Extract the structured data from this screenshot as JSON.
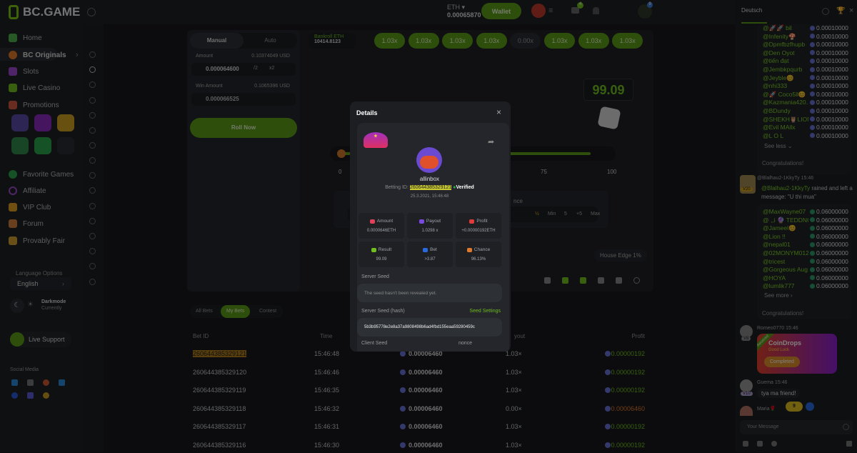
{
  "header": {
    "logo": "BC.GAME",
    "currency": "ETH",
    "balance": "0.00065870",
    "wallet_label": "Wallet",
    "mail_badge": "4",
    "chat_badge": "9"
  },
  "sidebar": {
    "items": [
      {
        "label": "Home",
        "color": "#4bb24b"
      },
      {
        "label": "BC Originals",
        "color": "#e07a2a"
      },
      {
        "label": "Slots",
        "color": "#a04ad0"
      },
      {
        "label": "Live Casino",
        "color": "#6fbf1e"
      },
      {
        "label": "Promotions",
        "color": "#d05a40"
      }
    ],
    "items2": [
      {
        "label": "Favorite Games",
        "color": "#2aa34a"
      },
      {
        "label": "Affiliate",
        "color": "#a04ad0"
      },
      {
        "label": "VIP Club",
        "color": "#e0a020"
      },
      {
        "label": "Forum",
        "color": "#d08040"
      },
      {
        "label": "Provably Fair",
        "color": "#d0a030"
      }
    ],
    "language_label": "Language Options",
    "language": "English",
    "theme_title": "Darkmode",
    "theme_sub": "Currently",
    "live_support": "Live Support",
    "social_label": "Social Media"
  },
  "game": {
    "tabs": [
      "Manual",
      "Auto"
    ],
    "amount_label": "Amount",
    "amount_usd": "0.10374049 USD",
    "amount": "0.000064600",
    "half": "/2",
    "double": "x2",
    "win_label": "Win Amount",
    "win_usd": "0.1065396 USD",
    "win_amount": "0.000066525",
    "roll": "Roll Now",
    "bankroll_label": "Bankroll ETH",
    "bankroll": "10414.8123",
    "history": [
      "1.03x",
      "1.03x",
      "1.03x",
      "1.03x",
      "0.00x",
      "1.03x",
      "1.03x",
      "1.03x"
    ],
    "result": "99.09",
    "slider_labels": [
      "0",
      "75",
      "100"
    ],
    "slider_value": 96.13,
    "chance_label_partial": "nce",
    "chance_buttons": [
      "½",
      "Min",
      "5",
      "+5",
      "Max"
    ],
    "house_edge": "House Edge 1%"
  },
  "bets": {
    "tabs": [
      "All Bets",
      "My Bets",
      "Contest"
    ],
    "active_tab": "My Bets",
    "headers": {
      "id": "Bet ID",
      "time": "Time",
      "payout": "yout",
      "profit": "Profit"
    },
    "rows": [
      {
        "id": "2606443853291​21",
        "time": "15:46:48",
        "amount": "0.00006460",
        "payout": "1.03×",
        "profit": "+0.00000192",
        "win": true
      },
      {
        "id": "260644385329120",
        "time": "15:46:46",
        "amount": "0.00006460",
        "payout": "1.03×",
        "profit": "+0.00000192",
        "win": true
      },
      {
        "id": "260644385329119",
        "time": "15:46:35",
        "amount": "0.00006460",
        "payout": "1.03×",
        "profit": "+0.00000192",
        "win": true
      },
      {
        "id": "260644385329118",
        "time": "15:46:32",
        "amount": "0.00006460",
        "payout": "0.00×",
        "profit": "-0.00006460",
        "win": false
      },
      {
        "id": "260644385329117",
        "time": "15:46:31",
        "amount": "0.00006460",
        "payout": "1.03×",
        "profit": "+0.00000192",
        "win": true
      },
      {
        "id": "260644385329116",
        "time": "15:46:30",
        "amount": "0.00006460",
        "payout": "1.03×",
        "profit": "+0.00000192",
        "win": true
      }
    ]
  },
  "chat": {
    "tab": "Deutsch",
    "rain1": [
      {
        "n": "@🚀🚀 bil",
        "a": "0.00010000"
      },
      {
        "n": "@Infenity🍄",
        "a": "0.00010000"
      },
      {
        "n": "@Dpmfbzfhupb",
        "a": "0.00010000"
      },
      {
        "n": "@Den Oyot",
        "a": "0.00010000"
      },
      {
        "n": "@tiến đạt",
        "a": "0.00010000"
      },
      {
        "n": "@Jembkpqurb",
        "a": "0.00010000"
      },
      {
        "n": "@Jeyble😊",
        "a": "0.00010000"
      },
      {
        "n": "@nhi333",
        "a": "0.00010000"
      },
      {
        "n": "@🚀 Coco5ll😊",
        "a": "0.00010000"
      },
      {
        "n": "@Kazmania420...",
        "a": "0.00010000"
      },
      {
        "n": "@BDundy",
        "a": "0.00010000"
      },
      {
        "n": "@SHEKH🦉LION...",
        "a": "0.00010000"
      },
      {
        "n": "@Evil MAllx",
        "a": "0.00010000"
      },
      {
        "n": "@L O L",
        "a": "0.00010000"
      }
    ],
    "see_less": "See less",
    "congrats": "Congratulations!",
    "rain_user": "@Blalhau2-1KkyTy",
    "rain_time": "15:46",
    "rain_msg": "rained and left a message: \"U thi mua\"",
    "vip1": "V20",
    "rain2": [
      {
        "n": "@MaxWayne07",
        "a": "0.06000000"
      },
      {
        "n": "@ ,,i 🔮 TEDDNC...",
        "a": "0.06000000"
      },
      {
        "n": "@Jameel😊",
        "a": "0.06000000"
      },
      {
        "n": "@Lion !!",
        "a": "0.06000000"
      },
      {
        "n": "@nepal01",
        "a": "0.06000000"
      },
      {
        "n": "@02MONYM012",
        "a": "0.06000000"
      },
      {
        "n": "@tricest",
        "a": "0.06000000"
      },
      {
        "n": "@Gorgeous Aug...",
        "a": "0.06000000"
      },
      {
        "n": "@HOYA",
        "a": "0.06000000"
      },
      {
        "n": "@lumlik777",
        "a": "0.06000000"
      }
    ],
    "see_more": "See more",
    "congrats2": "Congratulations!",
    "msg1_user": "Romeo0770",
    "msg1_time": "15:46",
    "vip2": "V8",
    "coindrop_title": "CoinDrops",
    "coindrop_sub": "Good Luck",
    "coindrop_btn": "Completed",
    "coindrop_ribbon": "Received",
    "msg2_user": "Guema",
    "msg2_time": "15:46",
    "vip3": "V10",
    "msg2_text": "tya ma friend!",
    "msg3_user": "Maria🌹",
    "new_count": "9",
    "placeholder": "Your Message"
  },
  "modal": {
    "title": "Details",
    "username": "allinbox",
    "betting_id_label": "Betting ID:",
    "betting_id": "260644385329121",
    "verified": "Verified",
    "datetime": "25.3.2021, 15:46:48",
    "stats": [
      {
        "label": "Amount",
        "value": "0.0000646ETH",
        "color": "#e0405a"
      },
      {
        "label": "Payout",
        "value": "1.0298 x",
        "color": "#7a4ae0"
      },
      {
        "label": "Profit",
        "value": "+0.00000192ETH",
        "color": "#e03a3a"
      },
      {
        "label": "Result",
        "value": "99.09",
        "color": "#6fbf1e"
      },
      {
        "label": "Bet",
        "value": ">3.87",
        "color": "#2a6ae0"
      },
      {
        "label": "Chance",
        "value": "96.13%",
        "color": "#e07a2a"
      }
    ],
    "server_seed_label": "Server Seed",
    "server_seed": "The seed hasn't been revealed yet.",
    "hash_label": "Server Seed (hash)",
    "seed_settings": "Seed Settings",
    "hash": "5b3b95778e2e8a37a9808498b6ad4fbd155eaa59280459c",
    "client_seed_label": "Client Seed",
    "nonce_label": "nonce"
  }
}
